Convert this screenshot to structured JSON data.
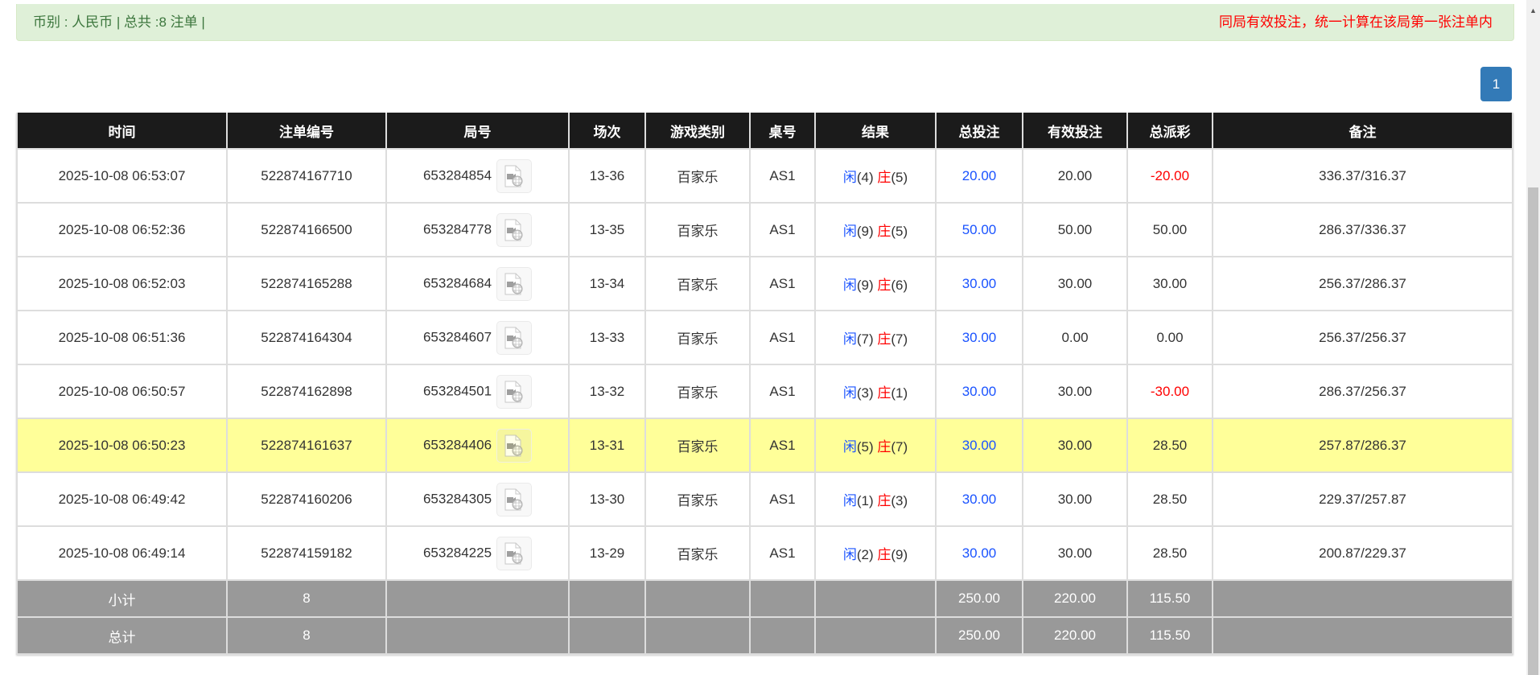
{
  "info": {
    "summary": "币别 : 人民币 | 总共 :8 注单 |",
    "notice": "同局有效投注，统一计算在该局第一张注单内"
  },
  "pagination": {
    "current": "1"
  },
  "colors": {
    "player": "#1a53ff",
    "banker": "#ff0000",
    "negative": "#ff0000",
    "highlight": "#ffff99",
    "header_bg": "#1b1b1b",
    "footer_bg": "#999999",
    "accent": "#337ab7"
  },
  "table": {
    "headers": [
      "时间",
      "注单编号",
      "局号",
      "场次",
      "游戏类别",
      "桌号",
      "结果",
      "总投注",
      "有效投注",
      "总派彩",
      "备注"
    ],
    "rows": [
      {
        "time": "2025-10-08 06:53:07",
        "bet_id": "522874167710",
        "round": "653284854",
        "session": "13-36",
        "game": "百家乐",
        "table": "AS1",
        "p": "闲",
        "pv": "(4)",
        "b": "庄",
        "bv": "(5)",
        "total": "20.00",
        "valid": "20.00",
        "payout": "-20.00",
        "note": "336.37/316.37",
        "neg": true,
        "hl": false
      },
      {
        "time": "2025-10-08 06:52:36",
        "bet_id": "522874166500",
        "round": "653284778",
        "session": "13-35",
        "game": "百家乐",
        "table": "AS1",
        "p": "闲",
        "pv": "(9)",
        "b": "庄",
        "bv": "(5)",
        "total": "50.00",
        "valid": "50.00",
        "payout": "50.00",
        "note": "286.37/336.37",
        "neg": false,
        "hl": false
      },
      {
        "time": "2025-10-08 06:52:03",
        "bet_id": "522874165288",
        "round": "653284684",
        "session": "13-34",
        "game": "百家乐",
        "table": "AS1",
        "p": "闲",
        "pv": "(9)",
        "b": "庄",
        "bv": "(6)",
        "total": "30.00",
        "valid": "30.00",
        "payout": "30.00",
        "note": "256.37/286.37",
        "neg": false,
        "hl": false
      },
      {
        "time": "2025-10-08 06:51:36",
        "bet_id": "522874164304",
        "round": "653284607",
        "session": "13-33",
        "game": "百家乐",
        "table": "AS1",
        "p": "闲",
        "pv": "(7)",
        "b": "庄",
        "bv": "(7)",
        "total": "30.00",
        "valid": "0.00",
        "payout": "0.00",
        "note": "256.37/256.37",
        "neg": false,
        "hl": false
      },
      {
        "time": "2025-10-08 06:50:57",
        "bet_id": "522874162898",
        "round": "653284501",
        "session": "13-32",
        "game": "百家乐",
        "table": "AS1",
        "p": "闲",
        "pv": "(3)",
        "b": "庄",
        "bv": "(1)",
        "total": "30.00",
        "valid": "30.00",
        "payout": "-30.00",
        "note": "286.37/256.37",
        "neg": true,
        "hl": false
      },
      {
        "time": "2025-10-08 06:50:23",
        "bet_id": "522874161637",
        "round": "653284406",
        "session": "13-31",
        "game": "百家乐",
        "table": "AS1",
        "p": "闲",
        "pv": "(5)",
        "b": "庄",
        "bv": "(7)",
        "total": "30.00",
        "valid": "30.00",
        "payout": "28.50",
        "note": "257.87/286.37",
        "neg": false,
        "hl": true
      },
      {
        "time": "2025-10-08 06:49:42",
        "bet_id": "522874160206",
        "round": "653284305",
        "session": "13-30",
        "game": "百家乐",
        "table": "AS1",
        "p": "闲",
        "pv": "(1)",
        "b": "庄",
        "bv": "(3)",
        "total": "30.00",
        "valid": "30.00",
        "payout": "28.50",
        "note": "229.37/257.87",
        "neg": false,
        "hl": false
      },
      {
        "time": "2025-10-08 06:49:14",
        "bet_id": "522874159182",
        "round": "653284225",
        "session": "13-29",
        "game": "百家乐",
        "table": "AS1",
        "p": "闲",
        "pv": "(2)",
        "b": "庄",
        "bv": "(9)",
        "total": "30.00",
        "valid": "30.00",
        "payout": "28.50",
        "note": "200.87/229.37",
        "neg": false,
        "hl": false
      }
    ],
    "subtotal": {
      "label": "小计",
      "count": "8",
      "total": "250.00",
      "valid": "220.00",
      "payout": "115.50"
    },
    "grandtotal": {
      "label": "总计",
      "count": "8",
      "total": "250.00",
      "valid": "220.00",
      "payout": "115.50"
    }
  }
}
